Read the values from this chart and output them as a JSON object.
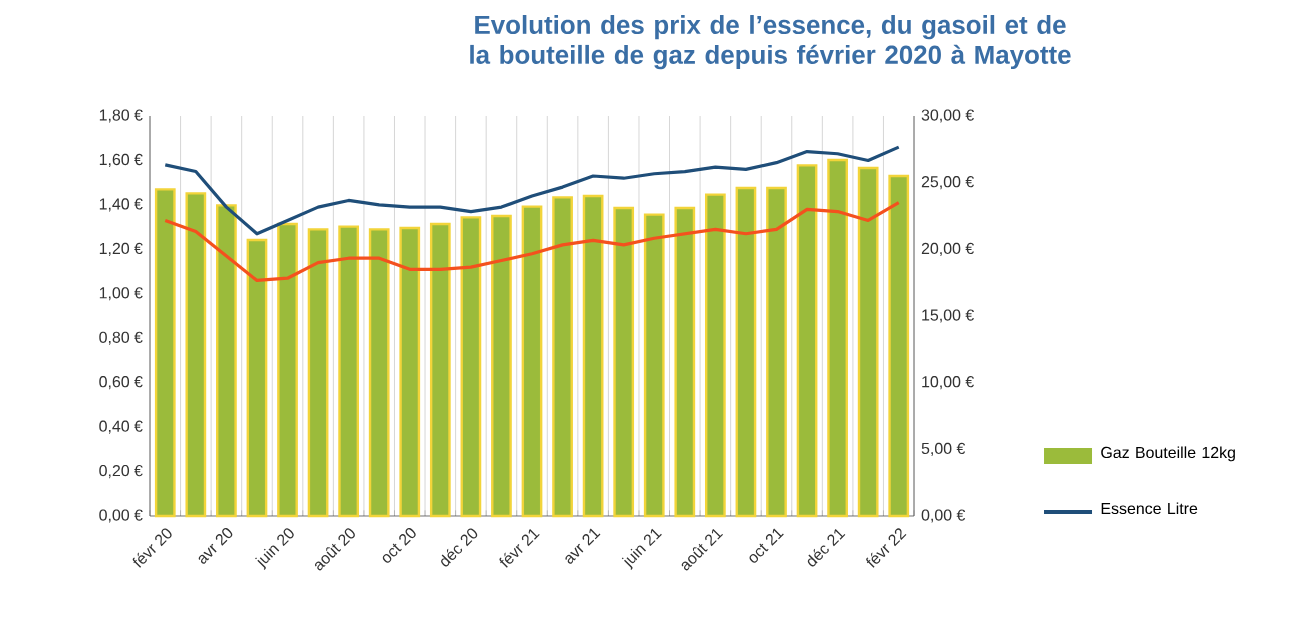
{
  "chart_data": {
    "type": "bar",
    "title": "Evolution des prix de l’essence, du gasoil et de la bouteille de gaz depuis février 2020 à Mayotte",
    "categories": [
      "févr 20",
      null,
      "avr 20",
      null,
      "juin 20",
      null,
      "août 20",
      null,
      "oct 20",
      null,
      "déc 20",
      null,
      "févr 21",
      null,
      "avr 21",
      null,
      "juin 21",
      null,
      "août 21",
      null,
      "oct 21",
      null,
      "déc 21",
      null,
      "févr 22"
    ],
    "series": [
      {
        "name": "Gaz Bouteille 12kg",
        "axis": "y2",
        "color": "#9bbb3b",
        "values": [
          24.5,
          24.2,
          23.3,
          20.7,
          21.9,
          21.5,
          21.7,
          21.5,
          21.6,
          21.9,
          22.4,
          22.5,
          23.2,
          23.9,
          24.0,
          23.1,
          22.6,
          23.1,
          24.1,
          24.6,
          24.6,
          26.3,
          26.7,
          26.1,
          25.5
        ]
      },
      {
        "name": "Essence Litre",
        "type": "line",
        "color": "#1f4e79",
        "values": [
          1.58,
          1.55,
          1.39,
          1.27,
          1.33,
          1.39,
          1.42,
          1.4,
          1.39,
          1.39,
          1.37,
          1.39,
          1.44,
          1.48,
          1.53,
          1.52,
          1.54,
          1.55,
          1.57,
          1.56,
          1.59,
          1.64,
          1.63,
          1.6,
          1.66
        ]
      },
      {
        "type": "line",
        "color": "#f4511e",
        "values": [
          1.33,
          1.28,
          1.17,
          1.06,
          1.07,
          1.14,
          1.16,
          1.16,
          1.11,
          1.11,
          1.12,
          1.15,
          1.18,
          1.22,
          1.24,
          1.22,
          1.25,
          1.27,
          1.29,
          1.27,
          1.29,
          1.38,
          1.37,
          1.33,
          1.41
        ]
      }
    ],
    "ylim": [
      0,
      1.8
    ],
    "yticks": [
      {
        "value": 0,
        "label": "0,00 €"
      },
      {
        "value": 0.2,
        "label": "0,20 €"
      },
      {
        "value": 0.4,
        "label": "0,40 €"
      },
      {
        "value": 0.6,
        "label": "0,60 €"
      },
      {
        "value": 0.8,
        "label": "0,80 €"
      },
      {
        "value": 1.0,
        "label": "1,00 €"
      },
      {
        "value": 1.2,
        "label": "1,20 €"
      },
      {
        "value": 1.4,
        "label": "1,40 €"
      },
      {
        "value": 1.6,
        "label": "1,60 €"
      },
      {
        "value": 1.8,
        "label": "1,80 €"
      }
    ],
    "y2lim": [
      0,
      30
    ],
    "y2ticks": [
      {
        "value": 0,
        "label": "0,00 €"
      },
      {
        "value": 5,
        "label": "5,00 €"
      },
      {
        "value": 10,
        "label": "10,00 €"
      },
      {
        "value": 15,
        "label": "15,00 €"
      },
      {
        "value": 20,
        "label": "20,00 €"
      },
      {
        "value": 25,
        "label": "25,00 €"
      },
      {
        "value": 30,
        "label": "30,00 €"
      }
    ],
    "grid": "x",
    "legend": "right"
  }
}
